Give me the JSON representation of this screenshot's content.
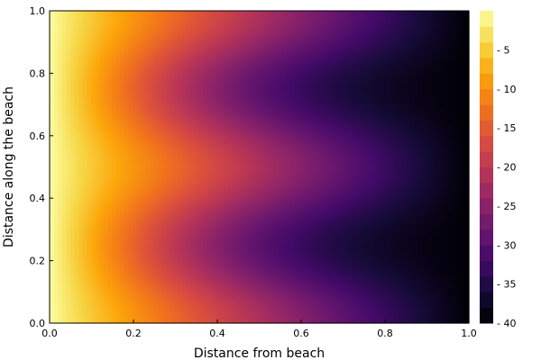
{
  "chart_data": {
    "type": "heatmap",
    "title": "",
    "xlabel": "Distance from beach",
    "ylabel": "Distance along the beach",
    "xlim": [
      0,
      1
    ],
    "ylim": [
      0,
      1
    ],
    "x_ticks": [
      0.0,
      0.2,
      0.4,
      0.6,
      0.8,
      1.0
    ],
    "x_tick_labels": [
      "0.0",
      "0.2",
      "0.4",
      "0.6",
      "0.8",
      "1.0"
    ],
    "y_ticks": [
      0.0,
      0.2,
      0.4,
      0.6,
      0.8,
      1.0
    ],
    "y_tick_labels": [
      "0.0",
      "0.2",
      "0.4",
      "0.6",
      "0.8",
      "1.0"
    ],
    "colorbar": {
      "min": -40,
      "max": 0,
      "levels": 20,
      "ticks": [
        -5,
        -10,
        -15,
        -20,
        -25,
        -30,
        -35,
        -40
      ],
      "tick_labels": [
        "- 5",
        "- 10",
        "- 15",
        "- 20",
        "- 25",
        "- 30",
        "- 35",
        "- 40"
      ],
      "colormap": "inferno"
    },
    "field": {
      "description_free": true,
      "x_min": 0,
      "x_max": 1,
      "y_min": 0,
      "y_max": 1,
      "grid_nx": 101,
      "grid_ny": 101,
      "formula_coefficients": {
        "base_slope": -40,
        "wave_amplitude": 8,
        "wave_periods": 2
      }
    }
  }
}
